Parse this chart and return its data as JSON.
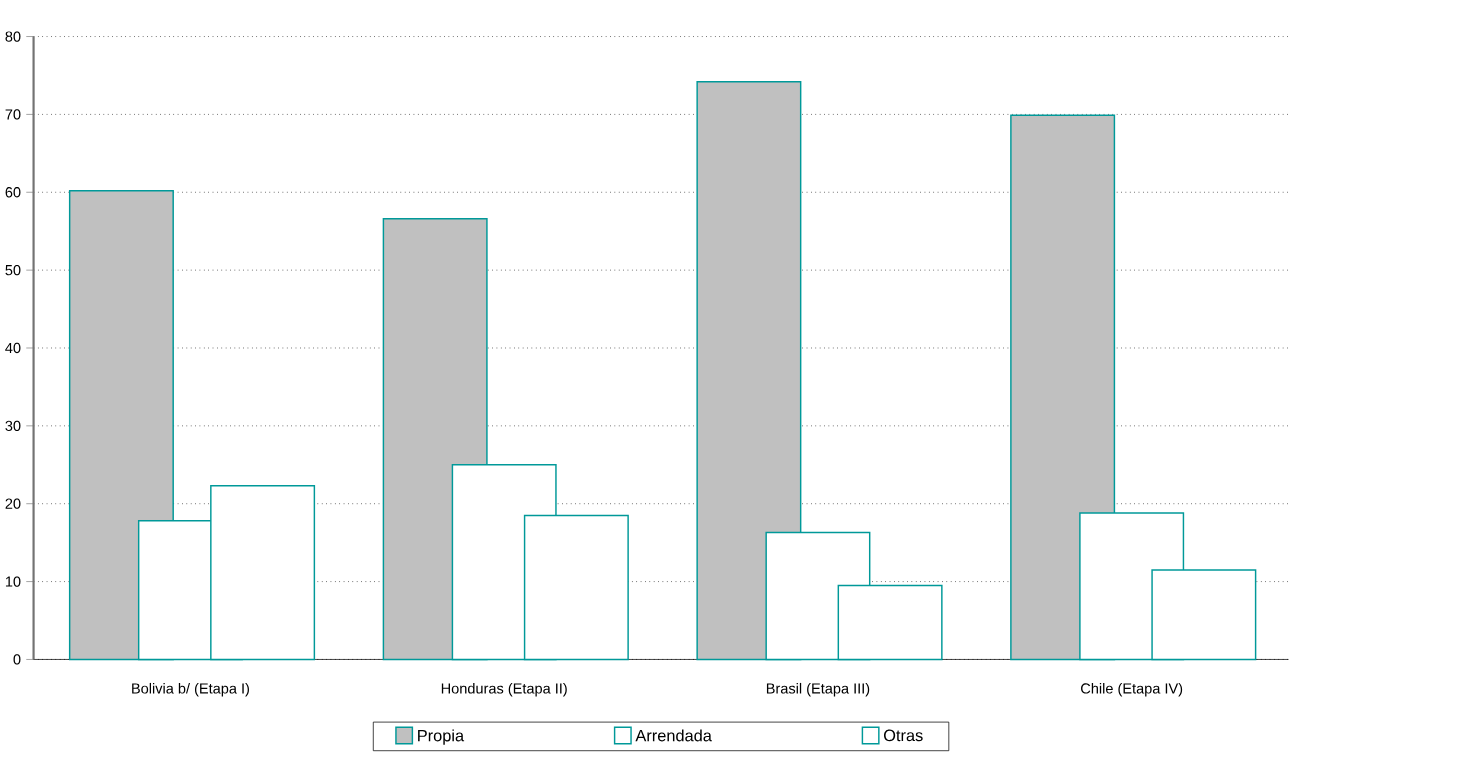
{
  "chart_data": {
    "type": "bar",
    "categories": [
      "Bolivia b/  (Etapa I)",
      "Honduras  (Etapa II)",
      "Brasil  (Etapa III)",
      "Chile  (Etapa IV)"
    ],
    "series": [
      {
        "name": "Propia",
        "color": "#c0c0c0",
        "values": [
          60.2,
          56.6,
          74.2,
          69.9
        ]
      },
      {
        "name": "Arrendada",
        "color": "#ffffff",
        "values": [
          17.8,
          25.0,
          16.3,
          18.8
        ]
      },
      {
        "name": "Otras",
        "color": "#ffffff",
        "values": [
          22.3,
          18.5,
          9.5,
          11.5
        ]
      }
    ],
    "ylim": [
      0,
      80
    ],
    "yticks": [
      0,
      10,
      20,
      30,
      40,
      50,
      60,
      70,
      80
    ],
    "grid": "y",
    "legend": "bottom"
  }
}
